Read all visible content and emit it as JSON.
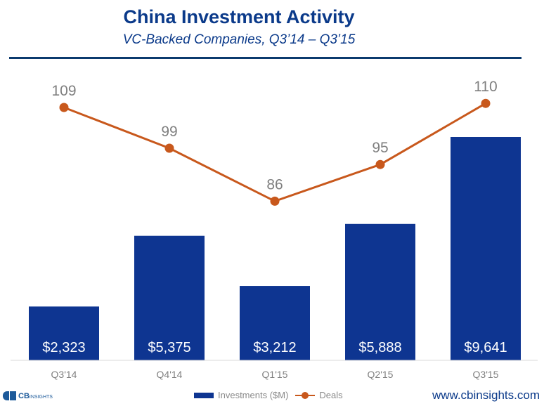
{
  "header": {
    "title": "China Investment Activity",
    "subtitle": "VC-Backed Companies, Q3’14 – Q3’15"
  },
  "chart_data": {
    "type": "bar+line",
    "categories": [
      "Q3'14",
      "Q4'14",
      "Q1'15",
      "Q2'15",
      "Q3'15"
    ],
    "series": [
      {
        "name": "Investments ($M)",
        "type": "bar",
        "values": [
          2323,
          5375,
          3212,
          5888,
          9641
        ],
        "labels": [
          "$2,323",
          "$5,375",
          "$3,212",
          "$5,888",
          "$9,641"
        ],
        "color": "#0e3591"
      },
      {
        "name": "Deals",
        "type": "line",
        "values": [
          109,
          99,
          86,
          95,
          110
        ],
        "labels": [
          "109",
          "99",
          "86",
          "95",
          "110"
        ],
        "color": "#c8581c"
      }
    ],
    "grid": false
  },
  "legend": {
    "investments": "Investments ($M)",
    "deals": "Deals"
  },
  "footer": {
    "logo_text": "CB",
    "logo_subtext": "INSIGHTS",
    "website": "www.cbinsights.com"
  }
}
